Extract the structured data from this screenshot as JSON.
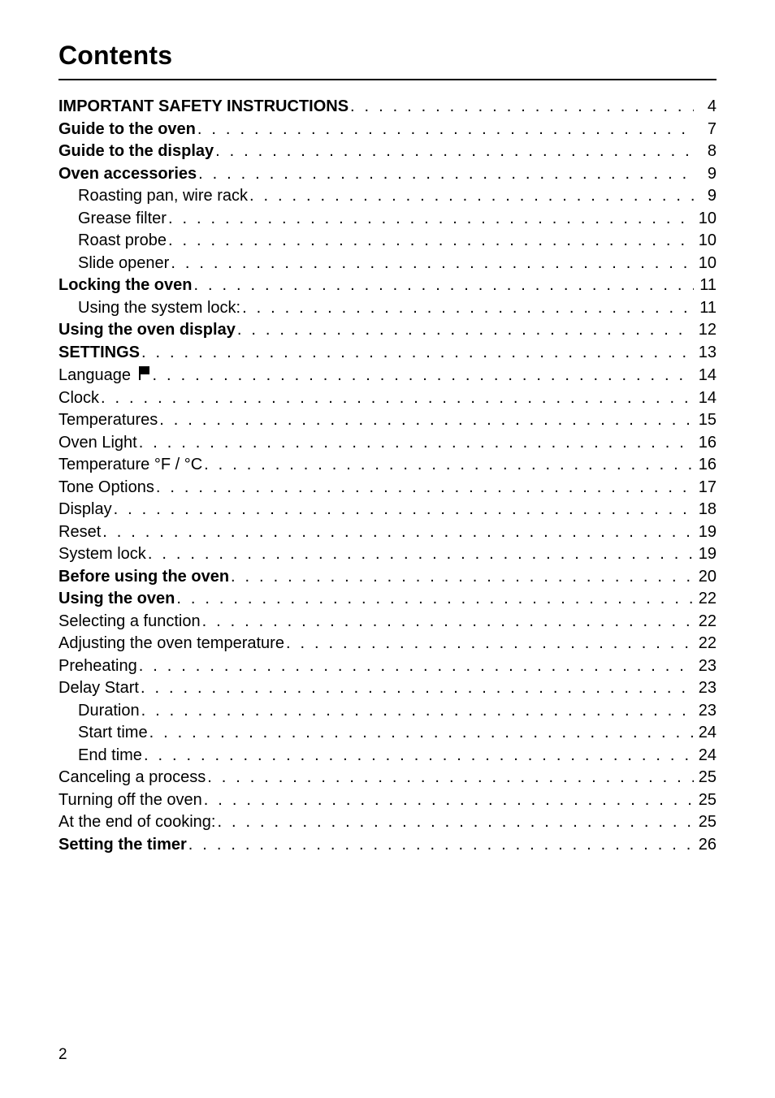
{
  "page": {
    "title": "Contents",
    "footer_page_number": "2",
    "colors": {
      "text": "#000000",
      "background": "#ffffff",
      "rule": "#000000"
    },
    "typography": {
      "title_fontsize_pt": 24,
      "title_weight": "bold",
      "body_fontsize_pt": 15,
      "font_family": "Helvetica"
    }
  },
  "toc": {
    "entries": [
      {
        "label": "IMPORTANT SAFETY INSTRUCTIONS",
        "page": "4",
        "bold": true,
        "indent": 0
      },
      {
        "label": "Guide to the oven",
        "page": "7",
        "bold": true,
        "indent": 0
      },
      {
        "label": "Guide to the display",
        "page": "8",
        "bold": true,
        "indent": 0
      },
      {
        "label": "Oven accessories",
        "page": "9",
        "bold": true,
        "indent": 0
      },
      {
        "label": "Roasting pan, wire rack",
        "page": "9",
        "bold": false,
        "indent": 1
      },
      {
        "label": "Grease filter",
        "page": "10",
        "bold": false,
        "indent": 1
      },
      {
        "label": "Roast probe",
        "page": "10",
        "bold": false,
        "indent": 1
      },
      {
        "label": "Slide opener",
        "page": "10",
        "bold": false,
        "indent": 1
      },
      {
        "label": "Locking the oven",
        "page": "11",
        "bold": true,
        "indent": 0
      },
      {
        "label": "Using the system lock:",
        "page": "11",
        "bold": false,
        "indent": 1
      },
      {
        "label": "Using the oven display",
        "page": "12",
        "bold": true,
        "indent": 0
      },
      {
        "label": "SETTINGS",
        "page": "13",
        "bold": true,
        "indent": 0
      },
      {
        "label": "Language",
        "page": "14",
        "bold": false,
        "indent": 0,
        "icon": "flag"
      },
      {
        "label": "Clock",
        "page": "14",
        "bold": false,
        "indent": 0
      },
      {
        "label": "Temperatures",
        "page": "15",
        "bold": false,
        "indent": 0
      },
      {
        "label": "Oven Light",
        "page": "16",
        "bold": false,
        "indent": 0
      },
      {
        "label": "Temperature °F / °C",
        "page": "16",
        "bold": false,
        "indent": 0
      },
      {
        "label": "Tone Options",
        "page": "17",
        "bold": false,
        "indent": 0
      },
      {
        "label": "Display",
        "page": "18",
        "bold": false,
        "indent": 0
      },
      {
        "label": "Reset",
        "page": "19",
        "bold": false,
        "indent": 0
      },
      {
        "label": "System lock",
        "page": "19",
        "bold": false,
        "indent": 0
      },
      {
        "label": "Before using the oven",
        "page": "20",
        "bold": true,
        "indent": 0
      },
      {
        "label": "Using the oven",
        "page": "22",
        "bold": true,
        "indent": 0
      },
      {
        "label": "Selecting a function",
        "page": "22",
        "bold": false,
        "indent": 0
      },
      {
        "label": "Adjusting the oven temperature",
        "page": "22",
        "bold": false,
        "indent": 0
      },
      {
        "label": "Preheating",
        "page": "23",
        "bold": false,
        "indent": 0
      },
      {
        "label": "Delay Start",
        "page": "23",
        "bold": false,
        "indent": 0
      },
      {
        "label": "Duration",
        "page": "23",
        "bold": false,
        "indent": 1
      },
      {
        "label": "Start time",
        "page": "24",
        "bold": false,
        "indent": 1
      },
      {
        "label": "End time",
        "page": "24",
        "bold": false,
        "indent": 1
      },
      {
        "label": "Canceling a process",
        "page": "25",
        "bold": false,
        "indent": 0
      },
      {
        "label": "Turning off the oven",
        "page": "25",
        "bold": false,
        "indent": 0
      },
      {
        "label": "At the end of cooking:",
        "page": "25",
        "bold": false,
        "indent": 0
      },
      {
        "label": "Setting the timer",
        "page": "26",
        "bold": true,
        "indent": 0
      }
    ]
  }
}
